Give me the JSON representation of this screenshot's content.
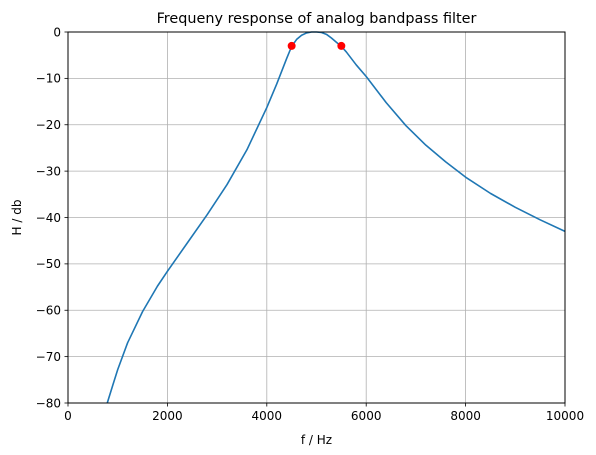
{
  "chart_data": {
    "type": "line",
    "title": "Frequeny response of analog bandpass filter",
    "xlabel": "f / Hz",
    "ylabel": "H / db",
    "xlim": [
      0,
      10000
    ],
    "ylim": [
      -80,
      0
    ],
    "grid": true,
    "x_ticks": [
      0,
      2000,
      4000,
      6000,
      8000,
      10000
    ],
    "y_ticks": [
      0,
      -10,
      -20,
      -30,
      -40,
      -50,
      -60,
      -70,
      -80
    ],
    "series": [
      {
        "color": "#1f77b4",
        "x": [
          790,
          900,
          1000,
          1200,
          1500,
          1800,
          2000,
          2400,
          2800,
          3200,
          3600,
          4000,
          4200,
          4400,
          4500,
          4600,
          4700,
          4800,
          4900,
          5000,
          5100,
          5200,
          5300,
          5400,
          5500,
          5600,
          5700,
          5800,
          6000,
          6400,
          6800,
          7200,
          7600,
          8000,
          8500,
          9000,
          9500,
          10000
        ],
        "y": [
          -80,
          -76.2,
          -72.8,
          -67.0,
          -60.3,
          -54.8,
          -51.6,
          -45.5,
          -39.4,
          -32.9,
          -25.4,
          -16.3,
          -11.2,
          -5.7,
          -3.1,
          -1.6,
          -0.7,
          -0.2,
          0,
          0,
          -0.1,
          -0.5,
          -1.3,
          -2.2,
          -3.1,
          -4.3,
          -5.7,
          -7.1,
          -9.6,
          -15.2,
          -20.2,
          -24.4,
          -28.0,
          -31.3,
          -34.8,
          -37.8,
          -40.5,
          -43.0
        ]
      },
      {
        "color": "#ff0000",
        "marker": "circle",
        "x": [
          4500,
          5500
        ],
        "y": [
          -3,
          -3
        ]
      }
    ]
  }
}
